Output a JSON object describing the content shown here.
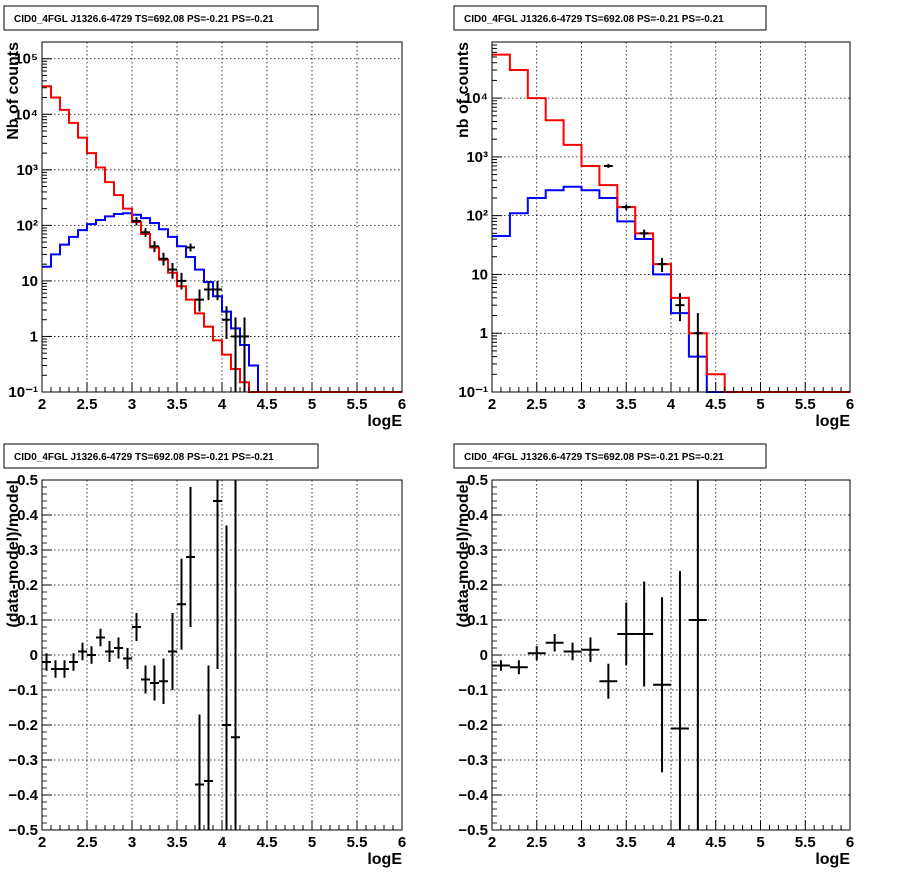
{
  "colors": {
    "data": "#000000",
    "total_model": "#ff0000",
    "component": "#0000ff",
    "grid": "#000000"
  },
  "chart_data": [
    {
      "type": "line",
      "title": "CID0_4FGL J1326.6-4729 TS=692.08 PS=-0.21 PS=-0.21",
      "xlabel": "logE",
      "ylabel": "Nb of counts",
      "xlim": [
        2,
        6
      ],
      "ylim": [
        0.1,
        200000
      ],
      "yscale": "log",
      "grid": true,
      "x_ticks": [
        "2",
        "2.5",
        "3",
        "3.5",
        "4",
        "4.5",
        "5",
        "5.5",
        "6"
      ],
      "y_ticks": [
        "10⁻¹",
        "1",
        "10",
        "10²",
        "10³",
        "10⁴",
        "10⁵"
      ],
      "bin_edges": [
        2.0,
        2.1,
        2.2,
        2.3,
        2.4,
        2.5,
        2.6,
        2.7,
        2.8,
        2.9,
        3.0,
        3.1,
        3.2,
        3.3,
        3.4,
        3.5,
        3.6,
        3.7,
        3.8,
        3.9,
        4.0,
        4.1,
        4.2,
        4.3,
        4.4,
        4.5,
        4.6,
        4.7,
        4.8,
        4.9,
        5.0,
        5.1,
        5.2,
        5.3,
        5.4,
        5.5,
        5.6,
        5.7,
        5.8,
        5.9,
        6.0
      ],
      "series": [
        {
          "role": "total_model",
          "values": [
            32000,
            20000,
            12000,
            7000,
            3800,
            2000,
            1100,
            600,
            350,
            200,
            115,
            70,
            40,
            24,
            14,
            8,
            4.6,
            2.6,
            1.5,
            0.85,
            0.47,
            0.26,
            0.15,
            0.1,
            0.1,
            0.1,
            0.1,
            0.1,
            0.1,
            0.1,
            0.1,
            0.1,
            0.1,
            0.1,
            0.1,
            0.1,
            0.1,
            0.1,
            0.1,
            0.1
          ]
        },
        {
          "role": "component",
          "values": [
            12000,
            8000,
            5200,
            3400,
            2200,
            1400,
            900,
            560,
            340,
            200,
            115,
            70,
            40,
            24,
            14,
            8,
            4.6,
            2.6,
            1.5,
            0.85,
            0.47,
            0.26,
            0.15,
            0.1,
            0.1,
            0.1,
            0.1,
            0.1,
            0.1,
            0.1,
            0.1,
            0.1,
            0.1,
            0.1,
            0.1,
            0.1,
            0.1,
            0.1,
            0.1,
            0.1
          ]
        },
        {
          "role": "component2",
          "values": [
            18,
            30,
            45,
            62,
            82,
            105,
            125,
            145,
            160,
            165,
            155,
            135,
            110,
            85,
            62,
            42,
            27,
            16,
            9.5,
            5.3,
            2.8,
            1.4,
            0.7,
            0.3,
            0.1,
            0.1,
            0.1,
            0.1,
            0.1,
            0.1,
            0.1,
            0.1,
            0.1,
            0.1,
            0.1,
            0.1,
            0.1,
            0.1,
            0.1,
            0.1
          ]
        }
      ],
      "points": [
        {
          "x": 3.05,
          "y": 120,
          "lo": 100,
          "hi": 140
        },
        {
          "x": 3.15,
          "y": 75,
          "lo": 62,
          "hi": 90
        },
        {
          "x": 3.25,
          "y": 42,
          "lo": 33,
          "hi": 52
        },
        {
          "x": 3.35,
          "y": 25,
          "lo": 19,
          "hi": 32
        },
        {
          "x": 3.45,
          "y": 16,
          "lo": 11,
          "hi": 21
        },
        {
          "x": 3.55,
          "y": 10,
          "lo": 7,
          "hi": 14
        },
        {
          "x": 3.65,
          "y": 40,
          "lo": 34,
          "hi": 47
        },
        {
          "x": 3.75,
          "y": 4.6,
          "lo": 2.8,
          "hi": 7
        },
        {
          "x": 3.85,
          "y": 7,
          "lo": 4.5,
          "hi": 10
        },
        {
          "x": 3.95,
          "y": 7,
          "lo": 4.5,
          "hi": 10
        },
        {
          "x": 4.05,
          "y": 2,
          "lo": 0.9,
          "hi": 3.5
        },
        {
          "x": 4.15,
          "y": 1,
          "lo": 0.1,
          "hi": 2.2
        },
        {
          "x": 4.25,
          "y": 1,
          "lo": 0.1,
          "hi": 2.2
        }
      ]
    },
    {
      "type": "line",
      "title": "CID0_4FGL J1326.6-4729 TS=692.08 PS=-0.21 PS=-0.21",
      "xlabel": "logE",
      "ylabel": "nb of counts",
      "xlim": [
        2,
        6
      ],
      "ylim": [
        0.1,
        90000
      ],
      "yscale": "log",
      "grid": true,
      "x_ticks": [
        "2",
        "2.5",
        "3",
        "3.5",
        "4",
        "4.5",
        "5",
        "5.5",
        "6"
      ],
      "y_ticks": [
        "10⁻¹",
        "1",
        "10",
        "10²",
        "10³",
        "10⁴"
      ],
      "bin_edges": [
        2.0,
        2.2,
        2.4,
        2.6,
        2.8,
        3.0,
        3.2,
        3.4,
        3.6,
        3.8,
        4.0,
        4.2,
        4.4,
        4.6,
        4.8,
        5.0,
        5.2,
        5.4,
        5.6,
        5.8,
        6.0
      ],
      "series": [
        {
          "role": "total_model",
          "values": [
            55000,
            30000,
            10000,
            4200,
            1600,
            700,
            330,
            140,
            50,
            15,
            4,
            1,
            0.2,
            0.1,
            0.1,
            0.1,
            0.1,
            0.1,
            0.1,
            0.1
          ]
        },
        {
          "role": "component",
          "values": [
            45000,
            25000,
            9000,
            3800,
            1500,
            650,
            300,
            125,
            45,
            14,
            3.8,
            1,
            0.1,
            0.1,
            0.1,
            0.1,
            0.1,
            0.1,
            0.1,
            0.1
          ]
        },
        {
          "role": "component2",
          "values": [
            45,
            110,
            200,
            270,
            310,
            270,
            200,
            80,
            40,
            10,
            2.2,
            0.4,
            0.1,
            0.1,
            0.1,
            0.1,
            0.1,
            0.1,
            0.1,
            0.1
          ]
        }
      ],
      "points": [
        {
          "x": 3.3,
          "y": 700,
          "lo": 650,
          "hi": 760
        },
        {
          "x": 3.5,
          "y": 140,
          "lo": 125,
          "hi": 155
        },
        {
          "x": 3.7,
          "y": 50,
          "lo": 42,
          "hi": 58
        },
        {
          "x": 3.9,
          "y": 15,
          "lo": 11,
          "hi": 19
        },
        {
          "x": 4.1,
          "y": 3,
          "lo": 1.6,
          "hi": 4.8
        },
        {
          "x": 4.3,
          "y": 1,
          "lo": 0.1,
          "hi": 2.2
        }
      ]
    },
    {
      "type": "scatter",
      "title": "CID0_4FGL J1326.6-4729 TS=692.08 PS=-0.21 PS=-0.21",
      "xlabel": "logE",
      "ylabel": "(data-model)/model",
      "xlim": [
        2,
        6
      ],
      "ylim": [
        -0.5,
        0.5
      ],
      "yscale": "linear",
      "grid": true,
      "x_ticks": [
        "2",
        "2.5",
        "3",
        "3.5",
        "4",
        "4.5",
        "5",
        "5.5",
        "6"
      ],
      "y_ticks": [
        "−0.5",
        "−0.4",
        "−0.3",
        "−0.2",
        "−0.1",
        "0",
        "0.1",
        "0.2",
        "0.3",
        "0.4",
        "0.5"
      ],
      "x_halfwidth": 0.05,
      "points": [
        {
          "x": 2.05,
          "y": -0.02,
          "err": 0.025
        },
        {
          "x": 2.15,
          "y": -0.04,
          "err": 0.025
        },
        {
          "x": 2.25,
          "y": -0.04,
          "err": 0.025
        },
        {
          "x": 2.35,
          "y": -0.02,
          "err": 0.025
        },
        {
          "x": 2.45,
          "y": 0.01,
          "err": 0.025
        },
        {
          "x": 2.55,
          "y": 0.0,
          "err": 0.025
        },
        {
          "x": 2.65,
          "y": 0.05,
          "err": 0.025
        },
        {
          "x": 2.75,
          "y": 0.01,
          "err": 0.03
        },
        {
          "x": 2.85,
          "y": 0.02,
          "err": 0.03
        },
        {
          "x": 2.95,
          "y": -0.01,
          "err": 0.03
        },
        {
          "x": 3.05,
          "y": 0.08,
          "err": 0.04
        },
        {
          "x": 3.15,
          "y": -0.07,
          "err": 0.04
        },
        {
          "x": 3.25,
          "y": -0.08,
          "err": 0.05
        },
        {
          "x": 3.35,
          "y": -0.075,
          "err": 0.065
        },
        {
          "x": 3.45,
          "y": 0.01,
          "err": 0.11
        },
        {
          "x": 3.55,
          "y": 0.145,
          "err": 0.13
        },
        {
          "x": 3.65,
          "y": 0.28,
          "err": 0.2
        },
        {
          "x": 3.75,
          "y": -0.37,
          "err": 0.2
        },
        {
          "x": 3.85,
          "y": -0.36,
          "err": 0.33
        },
        {
          "x": 3.95,
          "y": 0.44,
          "err": 0.48
        },
        {
          "x": 4.05,
          "y": -0.2,
          "err": 0.57
        },
        {
          "x": 4.15,
          "y": -0.235,
          "err": 0.95
        }
      ]
    },
    {
      "type": "scatter",
      "title": "CID0_4FGL J1326.6-4729 TS=692.08 PS=-0.21 PS=-0.21",
      "xlabel": "logE",
      "ylabel": "(data-model)/model",
      "xlim": [
        2,
        6
      ],
      "ylim": [
        -0.5,
        0.5
      ],
      "yscale": "linear",
      "grid": true,
      "x_ticks": [
        "2",
        "2.5",
        "3",
        "3.5",
        "4",
        "4.5",
        "5",
        "5.5",
        "6"
      ],
      "y_ticks": [
        "−0.5",
        "−0.4",
        "−0.3",
        "−0.2",
        "−0.1",
        "0",
        "0.1",
        "0.2",
        "0.3",
        "0.4",
        "0.5"
      ],
      "x_halfwidth": 0.1,
      "points": [
        {
          "x": 2.1,
          "y": -0.03,
          "err": 0.015
        },
        {
          "x": 2.3,
          "y": -0.035,
          "err": 0.02
        },
        {
          "x": 2.5,
          "y": 0.005,
          "err": 0.02
        },
        {
          "x": 2.7,
          "y": 0.035,
          "err": 0.025
        },
        {
          "x": 2.9,
          "y": 0.01,
          "err": 0.025
        },
        {
          "x": 3.1,
          "y": 0.015,
          "err": 0.035
        },
        {
          "x": 3.3,
          "y": -0.075,
          "err": 0.05
        },
        {
          "x": 3.5,
          "y": 0.06,
          "err": 0.09
        },
        {
          "x": 3.7,
          "y": 0.06,
          "err": 0.15
        },
        {
          "x": 3.9,
          "y": -0.085,
          "err": 0.25
        },
        {
          "x": 4.1,
          "y": -0.21,
          "err": 0.45
        },
        {
          "x": 4.3,
          "y": 0.1,
          "err": 0.9
        }
      ]
    }
  ]
}
